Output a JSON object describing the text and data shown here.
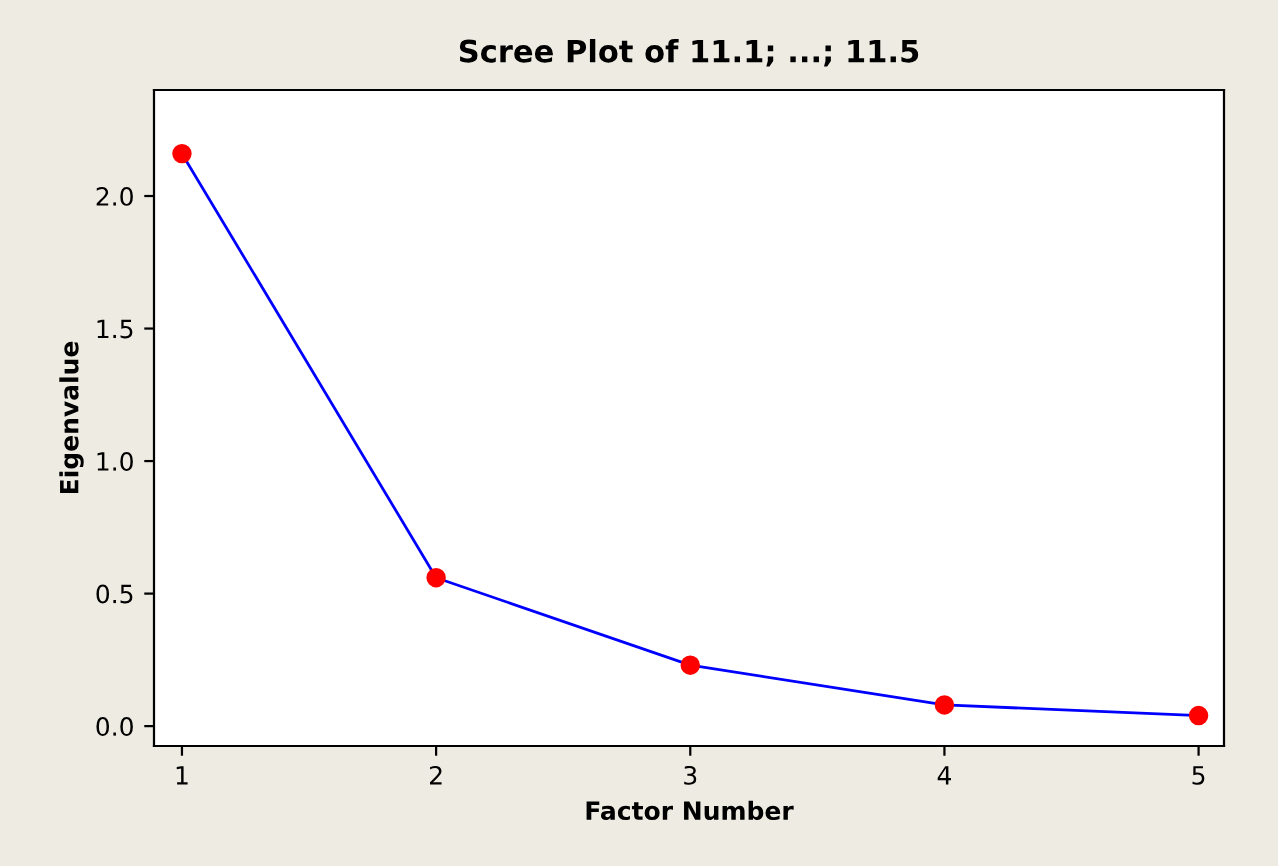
{
  "chart_data": {
    "type": "line",
    "title": "Scree Plot of 11.1; ...; 11.5",
    "xlabel": "Factor Number",
    "ylabel": "Eigenvalue",
    "x": [
      1,
      2,
      3,
      4,
      5
    ],
    "series": [
      {
        "color": "#0000ff",
        "colors": [
          "#ff0000",
          "#ff0000",
          "#ff0000",
          "#ff0000",
          "#ff0000"
        ],
        "values": [
          2.16,
          0.56,
          0.23,
          0.08,
          0.04
        ]
      }
    ],
    "marker": "circle",
    "line_style": "solid",
    "xlim": [
      0.89,
      5.1
    ],
    "xticks": [
      1,
      2,
      3,
      4,
      5
    ],
    "ylim": [
      -0.075,
      2.4
    ],
    "yticks": [
      {
        "value": 0,
        "label": "0.0"
      },
      {
        "value": 0.5,
        "label": "0.5"
      },
      {
        "value": 1,
        "label": "1.0"
      },
      {
        "value": 1.5,
        "label": "1.5"
      },
      {
        "value": 2,
        "label": "2.0"
      }
    ],
    "grid": false,
    "legend": false
  }
}
